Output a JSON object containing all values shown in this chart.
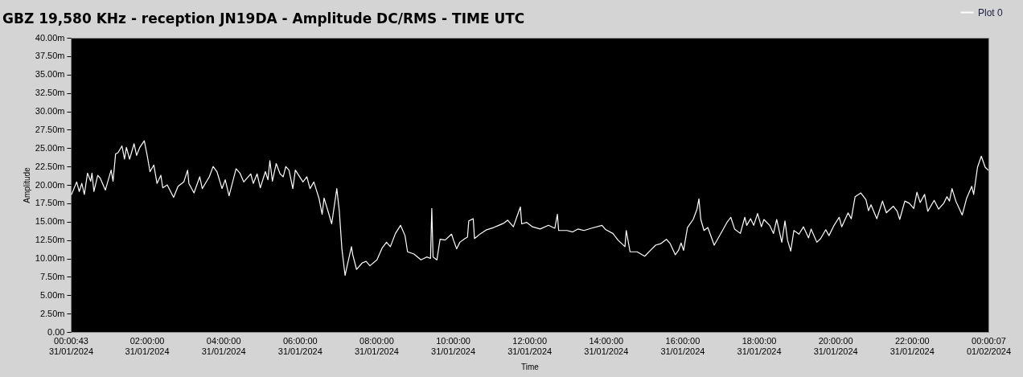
{
  "chart_data": {
    "type": "line",
    "title": "GBZ  19,580 KHz - reception JN19DA -  Amplitude DC/RMS   - TIME UTC",
    "xlabel": "Time",
    "ylabel": "Amplitude",
    "xlim": [
      "2024-01-31T00:00:43",
      "2024-02-01T00:00:07"
    ],
    "xticks": [
      {
        "value": "2024-01-31T00:00:43",
        "label": "00:00:43\n31/01/2024"
      },
      {
        "value": "2024-01-31T02:00",
        "label": "02:00:00\n31/01/2024"
      },
      {
        "value": "2024-01-31T04:00",
        "label": "04:00:00\n31/01/2024"
      },
      {
        "value": "2024-01-31T06:00",
        "label": "06:00:00\n31/01/2024"
      },
      {
        "value": "2024-01-31T08:00",
        "label": "08:00:00\n31/01/2024"
      },
      {
        "value": "2024-01-31T10:00",
        "label": "10:00:00\n31/01/2024"
      },
      {
        "value": "2024-01-31T12:00",
        "label": "12:00:00\n31/01/2024"
      },
      {
        "value": "2024-01-31T14:00",
        "label": "14:00:00\n31/01/2024"
      },
      {
        "value": "2024-01-31T16:00",
        "label": "16:00:00\n31/01/2024"
      },
      {
        "value": "2024-01-31T18:00",
        "label": "18:00:00\n31/01/2024"
      },
      {
        "value": "2024-01-31T20:00",
        "label": "20:00:00\n31/01/2024"
      },
      {
        "value": "2024-01-31T22:00",
        "label": "22:00:00\n31/01/2024"
      },
      {
        "value": "2024-02-01T00:00:07",
        "label": "00:00:07\n01/02/2024"
      }
    ],
    "ylim": [
      0,
      40
    ],
    "yticks": [
      {
        "value": 0,
        "label": "0.00"
      },
      {
        "value": 2.5,
        "label": "2.50m"
      },
      {
        "value": 5,
        "label": "5.00m"
      },
      {
        "value": 7.5,
        "label": "7.50m"
      },
      {
        "value": 10,
        "label": "10.00m"
      },
      {
        "value": 12.5,
        "label": "12.50m"
      },
      {
        "value": 15,
        "label": "15.00m"
      },
      {
        "value": 17.5,
        "label": "17.50m"
      },
      {
        "value": 20,
        "label": "20.00m"
      },
      {
        "value": 22.5,
        "label": "22.50m"
      },
      {
        "value": 25,
        "label": "25.00m"
      },
      {
        "value": 27.5,
        "label": "27.50m"
      },
      {
        "value": 30,
        "label": "30.00m"
      },
      {
        "value": 32.5,
        "label": "32.50m"
      },
      {
        "value": 35,
        "label": "35.00m"
      },
      {
        "value": 37.5,
        "label": "37.50m"
      },
      {
        "value": 40,
        "label": "40.00m"
      }
    ],
    "legend": "top right",
    "series": [
      {
        "name": "Plot 0",
        "color": "#ffffff",
        "x": [
          "2024-01-31T00:02",
          "2024-01-31T00:10",
          "2024-01-31T00:14",
          "2024-01-31T00:18",
          "2024-01-31T00:22",
          "2024-01-31T00:27",
          "2024-01-31T00:32",
          "2024-01-31T00:34",
          "2024-01-31T00:37",
          "2024-01-31T00:43",
          "2024-01-31T00:47",
          "2024-01-31T00:55",
          "2024-01-31T01:04",
          "2024-01-31T01:07",
          "2024-01-31T01:11",
          "2024-01-31T01:15",
          "2024-01-31T01:21",
          "2024-01-31T01:25",
          "2024-01-31T01:28",
          "2024-01-31T01:33",
          "2024-01-31T01:40",
          "2024-01-31T01:44",
          "2024-01-31T01:49",
          "2024-01-31T01:56",
          "2024-01-31T02:01",
          "2024-01-31T02:05",
          "2024-01-31T02:11",
          "2024-01-31T02:16",
          "2024-01-31T02:22",
          "2024-01-31T02:25",
          "2024-01-31T02:32",
          "2024-01-31T02:42",
          "2024-01-31T02:49",
          "2024-01-31T02:58",
          "2024-01-31T03:04",
          "2024-01-31T03:06",
          "2024-01-31T03:14",
          "2024-01-31T03:23",
          "2024-01-31T03:27",
          "2024-01-31T03:38",
          "2024-01-31T03:44",
          "2024-01-31T03:50",
          "2024-01-31T03:58",
          "2024-01-31T04:03",
          "2024-01-31T04:09",
          "2024-01-31T04:20",
          "2024-01-31T04:26",
          "2024-01-31T04:32",
          "2024-01-31T04:43",
          "2024-01-31T04:47",
          "2024-01-31T04:53",
          "2024-01-31T04:58",
          "2024-01-31T05:06",
          "2024-01-31T05:10",
          "2024-01-31T05:13",
          "2024-01-31T05:17",
          "2024-01-31T05:23",
          "2024-01-31T05:29",
          "2024-01-31T05:34",
          "2024-01-31T05:38",
          "2024-01-31T05:43",
          "2024-01-31T05:49",
          "2024-01-31T05:53",
          "2024-01-31T06:05",
          "2024-01-31T06:11",
          "2024-01-31T06:16",
          "2024-01-31T06:22",
          "2024-01-31T06:30",
          "2024-01-31T06:35",
          "2024-01-31T06:38",
          "2024-01-31T06:45",
          "2024-01-31T06:50",
          "2024-01-31T06:58",
          "2024-01-31T07:02",
          "2024-01-31T07:06",
          "2024-01-31T07:11",
          "2024-01-31T07:14",
          "2024-01-31T07:21",
          "2024-01-31T07:23",
          "2024-01-31T07:29",
          "2024-01-31T07:38",
          "2024-01-31T07:44",
          "2024-01-31T07:50",
          "2024-01-31T08:01",
          "2024-01-31T08:09",
          "2024-01-31T08:16",
          "2024-01-31T08:22",
          "2024-01-31T08:30",
          "2024-01-31T08:38",
          "2024-01-31T08:45",
          "2024-01-31T08:49",
          "2024-01-31T08:59",
          "2024-01-31T09:10",
          "2024-01-31T09:19",
          "2024-01-31T09:25",
          "2024-01-31T09:27",
          "2024-01-31T09:29",
          "2024-01-31T09:35",
          "2024-01-31T09:40",
          "2024-01-31T09:48",
          "2024-01-31T09:58",
          "2024-01-31T10:01",
          "2024-01-31T10:06",
          "2024-01-31T10:11",
          "2024-01-31T10:19",
          "2024-01-31T10:23",
          "2024-01-31T10:25",
          "2024-01-31T10:32",
          "2024-01-31T10:34",
          "2024-01-31T10:44",
          "2024-01-31T10:53",
          "2024-01-31T11:04",
          "2024-01-31T11:12",
          "2024-01-31T11:20",
          "2024-01-31T11:26",
          "2024-01-31T11:35",
          "2024-01-31T11:41",
          "2024-01-31T11:46",
          "2024-01-31T11:48",
          "2024-01-31T11:56",
          "2024-01-31T12:05",
          "2024-01-31T12:17",
          "2024-01-31T12:30",
          "2024-01-31T12:40",
          "2024-01-31T12:44",
          "2024-01-31T12:46",
          "2024-01-31T12:59",
          "2024-01-31T13:08",
          "2024-01-31T13:16",
          "2024-01-31T13:26",
          "2024-01-31T13:37",
          "2024-01-31T13:54",
          "2024-01-31T14:00",
          "2024-01-31T14:11",
          "2024-01-31T14:19",
          "2024-01-31T14:30",
          "2024-01-31T14:32",
          "2024-01-31T14:38",
          "2024-01-31T14:49",
          "2024-01-31T15:01",
          "2024-01-31T15:10",
          "2024-01-31T15:18",
          "2024-01-31T15:26",
          "2024-01-31T15:35",
          "2024-01-31T15:41",
          "2024-01-31T15:49",
          "2024-01-31T15:54",
          "2024-01-31T15:58",
          "2024-01-31T16:02",
          "2024-01-31T16:08",
          "2024-01-31T16:17",
          "2024-01-31T16:23",
          "2024-01-31T16:26",
          "2024-01-31T16:29",
          "2024-01-31T16:34",
          "2024-01-31T16:40",
          "2024-01-31T16:50",
          "2024-01-31T17:03",
          "2024-01-31T17:10",
          "2024-01-31T17:16",
          "2024-01-31T17:22",
          "2024-01-31T17:31",
          "2024-01-31T17:38",
          "2024-01-31T17:41",
          "2024-01-31T17:47",
          "2024-01-31T17:52",
          "2024-01-31T17:58",
          "2024-01-31T18:04",
          "2024-01-31T18:08",
          "2024-01-31T18:17",
          "2024-01-31T18:23",
          "2024-01-31T18:28",
          "2024-01-31T18:36",
          "2024-01-31T18:41",
          "2024-01-31T18:45",
          "2024-01-31T18:50",
          "2024-01-31T18:55",
          "2024-01-31T19:03",
          "2024-01-31T19:10",
          "2024-01-31T19:18",
          "2024-01-31T19:22",
          "2024-01-31T19:31",
          "2024-01-31T19:37",
          "2024-01-31T19:45",
          "2024-01-31T19:50",
          "2024-01-31T19:58",
          "2024-01-31T20:06",
          "2024-01-31T20:10",
          "2024-01-31T20:20",
          "2024-01-31T20:25",
          "2024-01-31T20:31",
          "2024-01-31T20:40",
          "2024-01-31T20:48",
          "2024-01-31T20:52",
          "2024-01-31T20:56",
          "2024-01-31T21:05",
          "2024-01-31T21:14",
          "2024-01-31T21:20",
          "2024-01-31T21:31",
          "2024-01-31T21:37",
          "2024-01-31T21:41",
          "2024-01-31T21:49",
          "2024-01-31T21:56",
          "2024-01-31T22:03",
          "2024-01-31T22:08",
          "2024-01-31T22:13",
          "2024-01-31T22:20",
          "2024-01-31T22:25",
          "2024-01-31T22:35",
          "2024-01-31T22:42",
          "2024-01-31T22:50",
          "2024-01-31T22:55",
          "2024-01-31T22:59",
          "2024-01-31T23:03",
          "2024-01-31T23:09",
          "2024-01-31T23:19",
          "2024-01-31T23:26",
          "2024-01-31T23:34",
          "2024-01-31T23:37",
          "2024-01-31T23:43",
          "2024-01-31T23:49",
          "2024-01-31T23:55",
          "2024-02-01T00:00"
        ],
        "values": [
          18.7,
          20.4,
          19.1,
          20.2,
          18.7,
          21.6,
          20.5,
          21.6,
          19.1,
          21.3,
          20.9,
          19.3,
          22.0,
          20.5,
          24.2,
          24.4,
          25.3,
          23.5,
          25.1,
          23.5,
          25.6,
          24.0,
          25.1,
          26.0,
          23.8,
          21.8,
          22.7,
          20.2,
          21.3,
          19.6,
          20.0,
          18.3,
          19.8,
          20.4,
          22.0,
          20.2,
          18.9,
          21.1,
          19.5,
          21.1,
          22.5,
          21.8,
          19.5,
          20.7,
          18.5,
          22.2,
          21.6,
          20.4,
          21.5,
          20.2,
          21.5,
          19.6,
          21.8,
          20.7,
          23.3,
          20.5,
          22.9,
          21.5,
          21.1,
          22.5,
          22.0,
          19.5,
          22.0,
          20.4,
          21.1,
          19.5,
          20.4,
          18.2,
          16.0,
          18.2,
          16.2,
          14.7,
          19.5,
          16.4,
          11.3,
          7.7,
          8.9,
          11.6,
          10.5,
          8.5,
          9.4,
          9.6,
          9.0,
          9.8,
          11.4,
          12.2,
          11.6,
          13.4,
          14.5,
          13.1,
          10.9,
          10.6,
          9.8,
          10.2,
          10.0,
          16.8,
          10.2,
          9.8,
          12.6,
          12.5,
          13.3,
          12.5,
          11.3,
          12.2,
          12.7,
          12.9,
          15.1,
          15.4,
          12.7,
          13.4,
          13.9,
          14.2,
          14.5,
          14.8,
          15.2,
          14.3,
          15.8,
          17.0,
          14.7,
          14.9,
          14.3,
          14.0,
          14.5,
          14.1,
          16.0,
          13.8,
          13.8,
          13.6,
          14.0,
          13.8,
          14.1,
          14.5,
          13.9,
          13.4,
          12.5,
          11.6,
          13.8,
          10.9,
          10.9,
          10.3,
          11.1,
          11.8,
          12.0,
          12.6,
          12.0,
          10.5,
          11.1,
          12.1,
          11.1,
          14.2,
          15.3,
          16.7,
          18.1,
          15.3,
          13.8,
          14.2,
          11.8,
          13.8,
          14.9,
          15.6,
          14.0,
          13.4,
          15.6,
          14.5,
          15.4,
          14.5,
          16.1,
          14.3,
          15.3,
          14.5,
          13.4,
          15.3,
          12.2,
          15.1,
          12.5,
          11.0,
          13.8,
          13.3,
          14.3,
          12.8,
          14.0,
          12.2,
          12.7,
          13.9,
          13.1,
          14.5,
          15.6,
          14.3,
          16.2,
          15.4,
          18.4,
          18.9,
          18.0,
          16.5,
          17.3,
          15.4,
          17.8,
          16.2,
          17.1,
          16.4,
          15.3,
          17.8,
          17.5,
          16.8,
          19.0,
          17.6,
          18.7,
          16.4,
          17.9,
          16.7,
          17.5,
          18.4,
          17.8,
          19.5,
          17.8,
          15.9,
          18.2,
          19.8,
          18.7,
          22.4,
          23.9,
          22.4,
          22.0
        ]
      }
    ]
  }
}
